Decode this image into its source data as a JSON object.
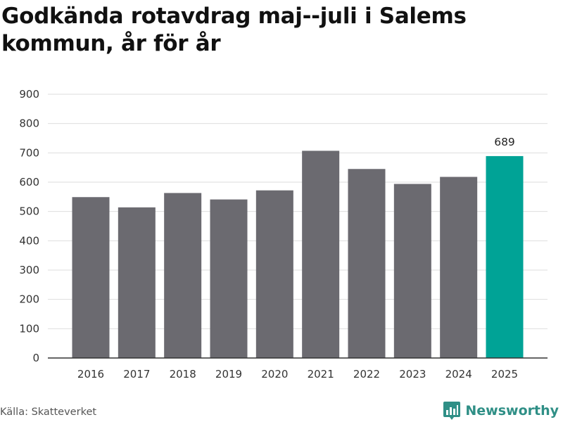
{
  "title": "Godkända rotavdrag maj--juli i Salems kommun, år för år",
  "source": "Källa: Skatteverket",
  "brand": {
    "name": "Newsworthy",
    "icon": "bar-chart-pin-icon"
  },
  "colors": {
    "bar": "#6b6a70",
    "highlight": "#00a396",
    "grid": "#dedede",
    "axis": "#333333",
    "brand": "#2f8f86"
  },
  "chart_data": {
    "type": "bar",
    "categories": [
      "2016",
      "2017",
      "2018",
      "2019",
      "2020",
      "2021",
      "2022",
      "2023",
      "2024",
      "2025"
    ],
    "values": [
      549,
      514,
      563,
      541,
      572,
      707,
      645,
      594,
      618,
      689
    ],
    "highlight_index": 9,
    "data_labels": [
      {
        "index": 9,
        "text": "689"
      }
    ],
    "yticks": [
      0,
      100,
      200,
      300,
      400,
      500,
      600,
      700,
      800,
      900
    ],
    "ylim": [
      0,
      900
    ],
    "grid": true,
    "xlabel": "",
    "ylabel": ""
  }
}
